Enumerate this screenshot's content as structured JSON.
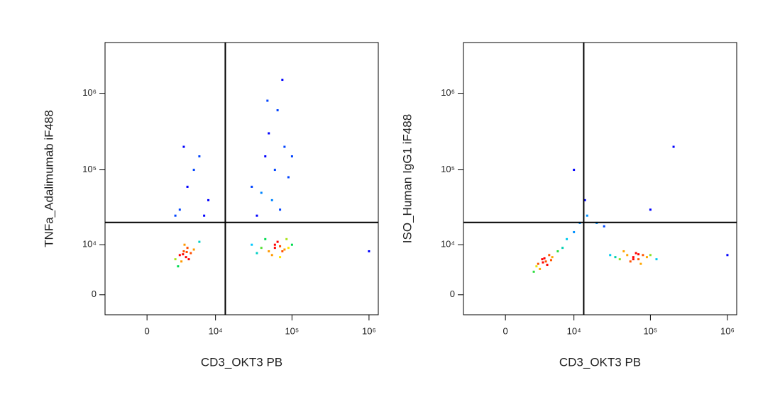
{
  "chart_data": [
    {
      "type": "scatter",
      "x_label": "CD3_OKT3 PB",
      "y_label": "TNFa_Adalimumab iF488",
      "xlim": [
        -4230,
        1320000
      ],
      "ylim": [
        -2980,
        4600000
      ],
      "xticks": [
        0,
        {
          "value": 10000,
          "label": "10⁴"
        },
        {
          "value": 100000,
          "label": "10⁵"
        },
        {
          "value": 1000000,
          "label": "10⁶"
        }
      ],
      "yticks": [
        0,
        {
          "value": 10000,
          "label": "10⁴"
        },
        {
          "value": 100000,
          "label": "10⁵"
        },
        {
          "value": 1000000,
          "label": "10⁶"
        }
      ],
      "x_gate": 13500,
      "y_gate": 20300,
      "x": [
        2500,
        3000,
        3500,
        3800,
        4000,
        3200,
        4500,
        2800,
        3600,
        5000,
        4200,
        3400,
        3900,
        6000,
        40000,
        50000,
        60000,
        70000,
        80000,
        55000,
        65000,
        75000,
        45000,
        90000,
        35000,
        100000,
        70000,
        60000,
        85000,
        30000,
        40000,
        60000,
        80000,
        50000,
        70000,
        45000,
        90000,
        35000,
        65000,
        55000,
        100000,
        75000,
        48000,
        30000,
        3000,
        4000,
        5000,
        2500,
        6000,
        8000,
        3500,
        7000,
        1000000
      ],
      "y": [
        6000,
        7000,
        8000,
        6500,
        9000,
        5500,
        7500,
        4500,
        10000,
        8500,
        6000,
        7200,
        7800,
        11000,
        9000,
        8000,
        10000,
        9500,
        8500,
        7000,
        11000,
        8000,
        12000,
        9000,
        7500,
        10000,
        6500,
        9000,
        12000,
        10000,
        50000,
        100000,
        200000,
        300000,
        30000,
        150000,
        80000,
        25000,
        600000,
        40000,
        150000,
        1500000,
        800000,
        60000,
        30000,
        60000,
        100000,
        25000,
        150000,
        40000,
        200000,
        25000,
        8000
      ]
    },
    {
      "type": "scatter",
      "x_label": "CD3_OKT3 PB",
      "y_label": "ISO_Human IgG1 iF488",
      "xlim": [
        -4230,
        1320000
      ],
      "ylim": [
        -2980,
        4600000
      ],
      "xticks": [
        0,
        {
          "value": 10000,
          "label": "10⁴"
        },
        {
          "value": 100000,
          "label": "10⁵"
        },
        {
          "value": 1000000,
          "label": "10⁶"
        }
      ],
      "yticks": [
        0,
        {
          "value": 10000,
          "label": "10⁴"
        },
        {
          "value": 100000,
          "label": "10⁵"
        },
        {
          "value": 1000000,
          "label": "10⁶"
        }
      ],
      "x_gate": 13500,
      "y_gate": 20300,
      "x": [
        3000,
        3500,
        4000,
        4500,
        3200,
        2800,
        5000,
        3800,
        4200,
        6000,
        3600,
        4800,
        2500,
        7000,
        40000,
        50000,
        60000,
        70000,
        80000,
        55000,
        65000,
        75000,
        45000,
        90000,
        35000,
        100000,
        70000,
        60000,
        120000,
        30000,
        10000,
        12000,
        15000,
        20000,
        8000,
        25000,
        14000,
        10000,
        200000,
        100000,
        1000000
      ],
      "y": [
        5000,
        6000,
        5500,
        7000,
        4000,
        4500,
        6500,
        6200,
        4800,
        8000,
        5300,
        5800,
        3500,
        9000,
        6000,
        7000,
        6500,
        6000,
        7000,
        5500,
        7500,
        5000,
        8000,
        6500,
        6500,
        7000,
        7200,
        6000,
        6000,
        7000,
        15000,
        20000,
        25000,
        20000,
        12000,
        18000,
        40000,
        100000,
        200000,
        30000,
        7000
      ]
    }
  ]
}
